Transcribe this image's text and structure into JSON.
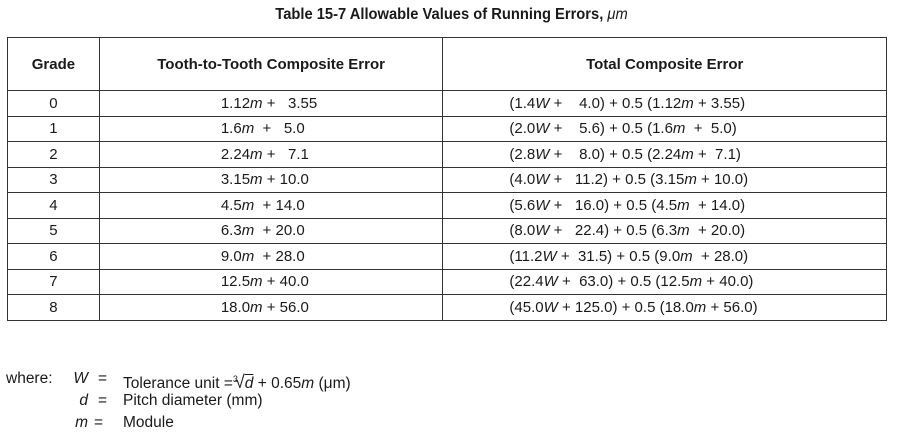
{
  "title": {
    "text": "Table 15-7  Allowable Values of Running Errors, ",
    "unit": "μm"
  },
  "table": {
    "headers": [
      "Grade",
      "Tooth-to-Tooth Composite Error",
      "Total Composite Error"
    ],
    "rows": [
      {
        "grade": "0",
        "t2t": "1.12m +   3.55",
        "total": "(1.4W +    4.0) + 0.5 (1.12m + 3.55)"
      },
      {
        "grade": "1",
        "t2t": "1.6m  +   5.0",
        "total": "(2.0W +    5.6) + 0.5 (1.6m  +  5.0)"
      },
      {
        "grade": "2",
        "t2t": "2.24m +   7.1",
        "total": "(2.8W +    8.0) + 0.5 (2.24m +  7.1)"
      },
      {
        "grade": "3",
        "t2t": "3.15m + 10.0",
        "total": "(4.0W +   11.2) + 0.5 (3.15m + 10.0)"
      },
      {
        "grade": "4",
        "t2t": "4.5m  + 14.0",
        "total": "(5.6W +   16.0) + 0.5 (4.5m  + 14.0)"
      },
      {
        "grade": "5",
        "t2t": "6.3m  + 20.0",
        "total": "(8.0W +   22.4) + 0.5 (6.3m  + 20.0)"
      },
      {
        "grade": "6",
        "t2t": "9.0m  + 28.0",
        "total": "(11.2W +  31.5) + 0.5 (9.0m  + 28.0)"
      },
      {
        "grade": "7",
        "t2t": "12.5m + 40.0",
        "total": "(22.4W +  63.0) + 0.5 (12.5m + 40.0)"
      },
      {
        "grade": "8",
        "t2t": "18.0m + 56.0",
        "total": "(45.0W + 125.0) + 0.5 (18.0m + 56.0)"
      }
    ]
  },
  "legend": {
    "where_label": "where:",
    "w_sym": "W",
    "w_eq": "=",
    "w_desc_prefix": "Tolerance unit",
    "w_formula_eq": "=",
    "w_root_index": "3",
    "w_root_var": "d",
    "w_formula_rest": " + 0.65",
    "w_formula_m": "m",
    "w_formula_unit": " (μm)",
    "d_sym": "d",
    "d_eq": "=",
    "d_desc": "Pitch diameter (mm)",
    "m_sym": "m",
    "m_eq": "=",
    "m_desc": "Module"
  }
}
